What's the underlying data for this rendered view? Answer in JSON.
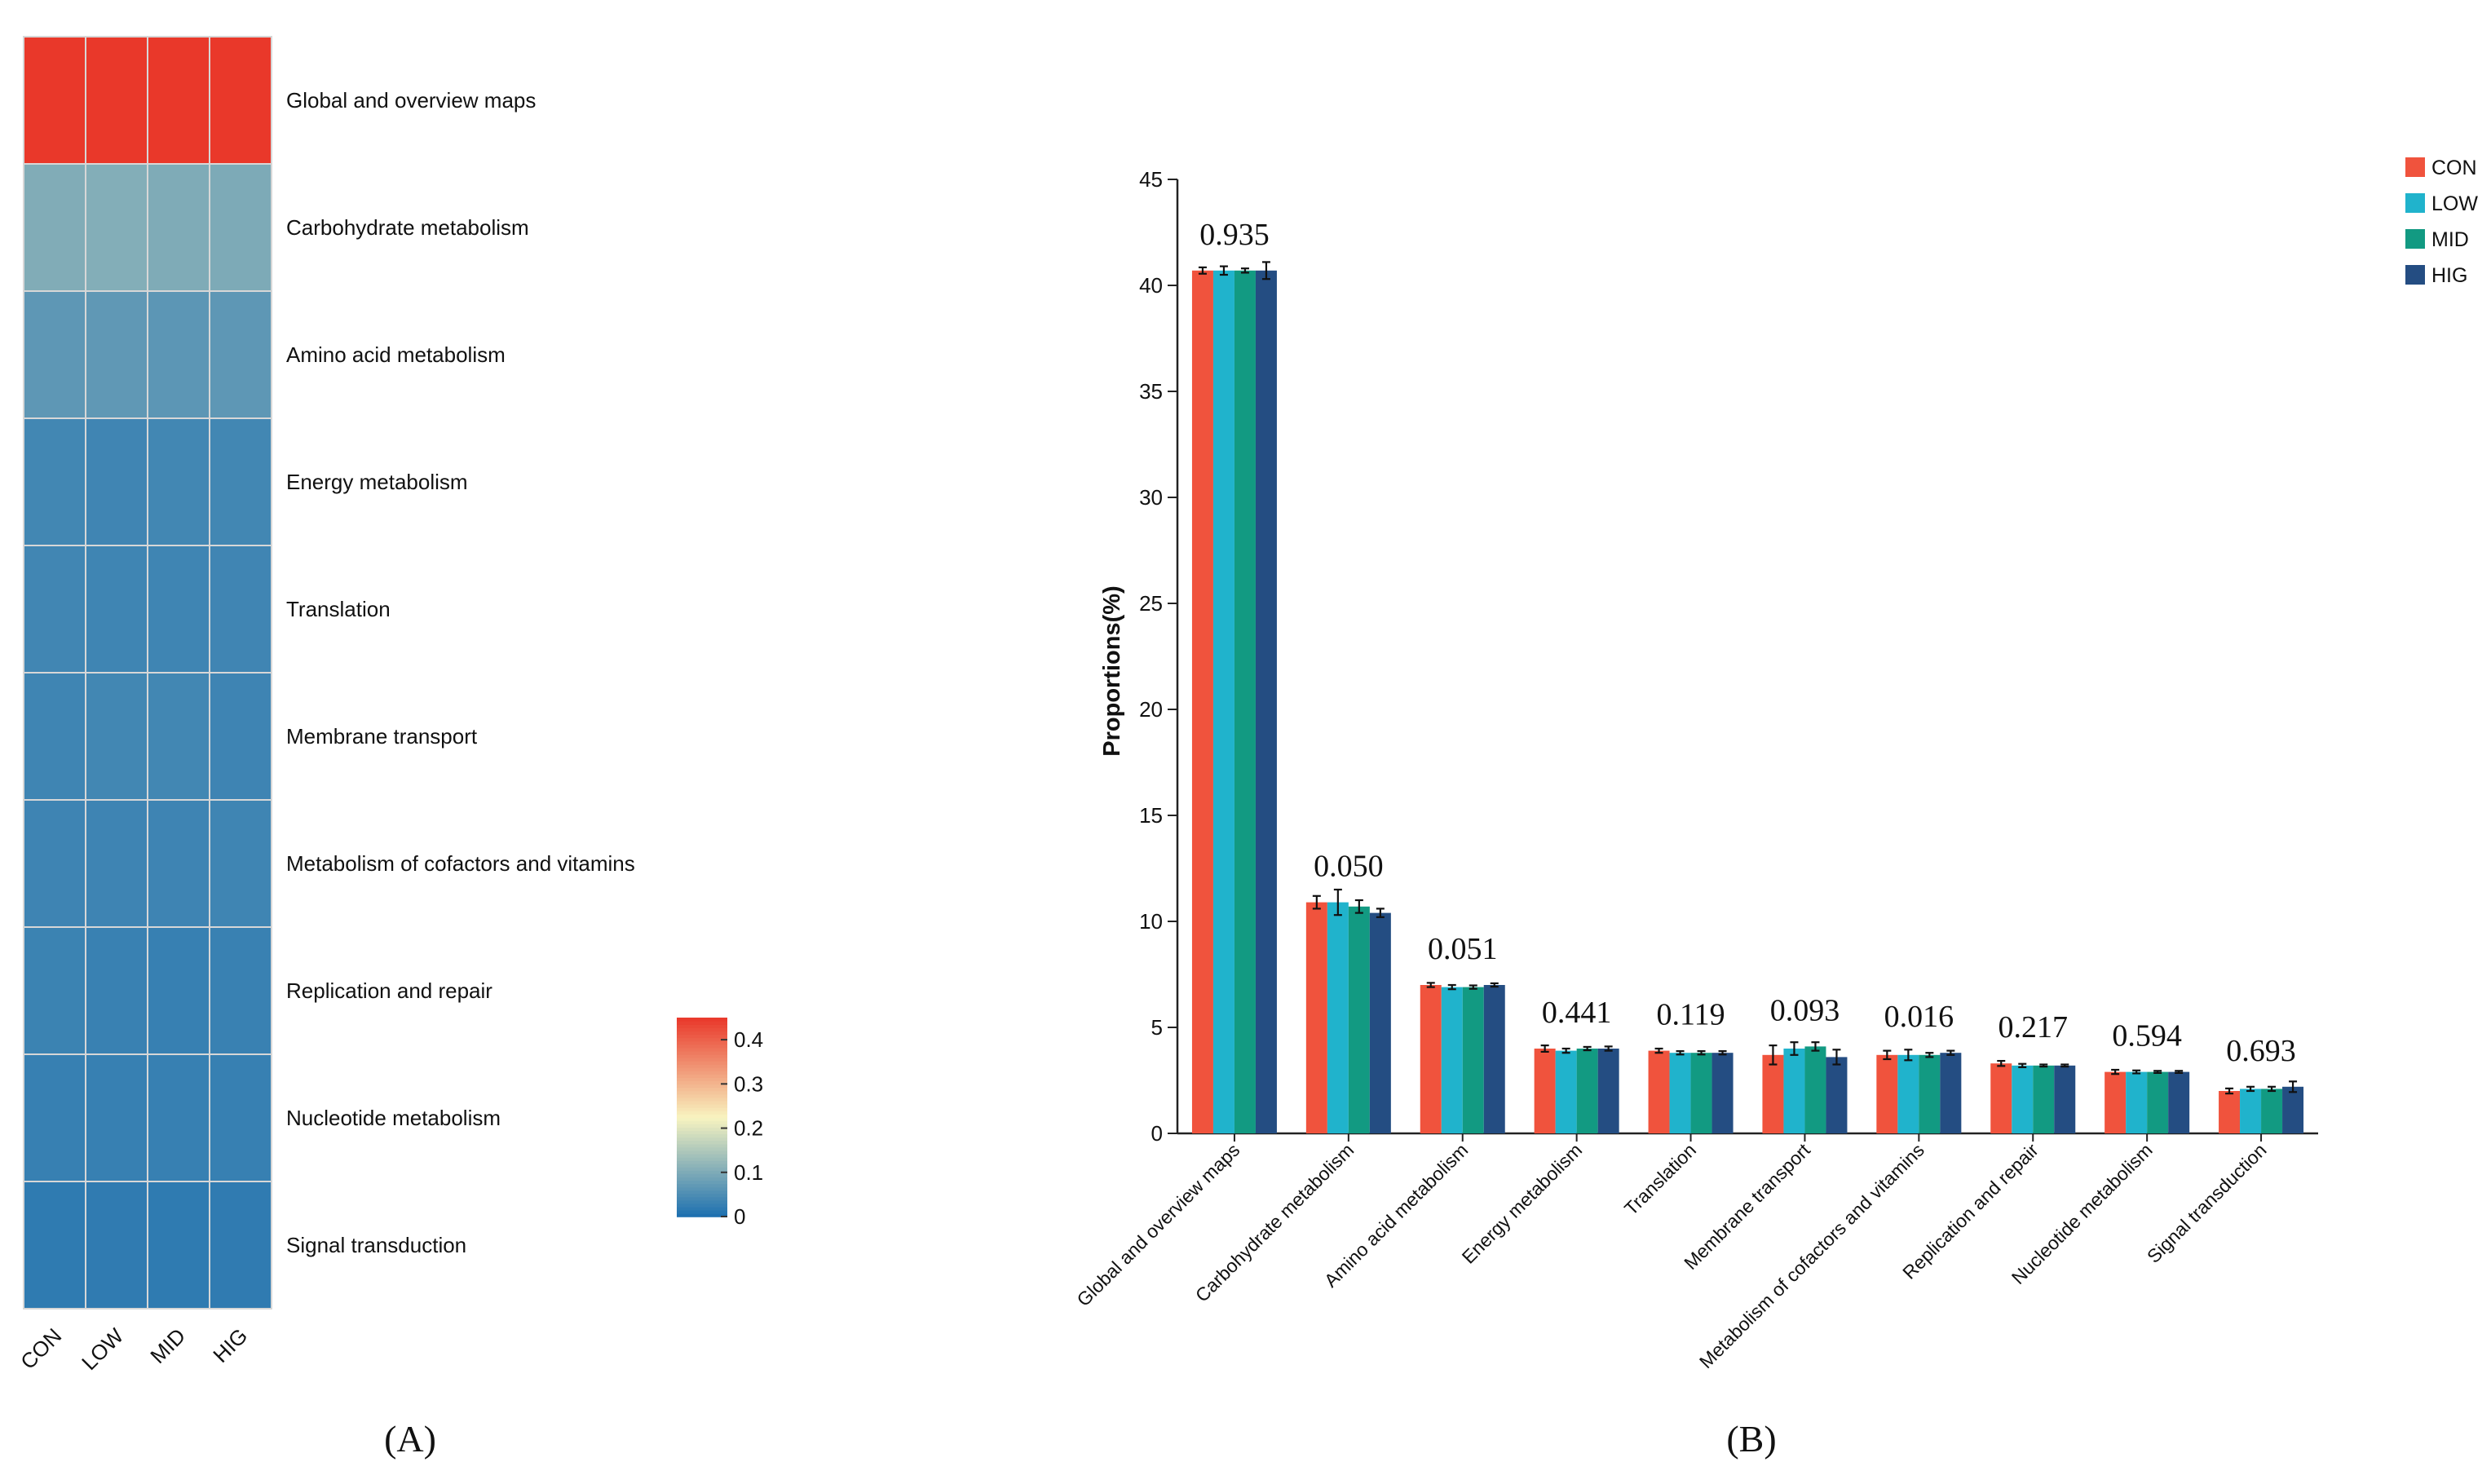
{
  "panel_labels": {
    "a": "(A)",
    "b": "(B)"
  },
  "palette": {
    "CON": "#f0533d",
    "LOW": "#20b3cc",
    "MID": "#129a82",
    "HIG": "#244d82",
    "error_bar": "#111111",
    "heat_low": "#1b6fb0",
    "heat_mid": "#f8f4c0",
    "heat_high": "#e9382a"
  },
  "chart_data": [
    {
      "type": "heatmap",
      "panel": "(A)",
      "columns": [
        "CON",
        "LOW",
        "MID",
        "HIG"
      ],
      "rows": [
        "Global and overview maps",
        "Carbohydrate metabolism",
        "Amino acid metabolism",
        "Energy metabolism",
        "Translation",
        "Membrane transport",
        "Metabolism of cofactors and vitamins",
        "Replication and repair",
        "Nucleotide metabolism",
        "Signal transduction"
      ],
      "values": [
        [
          0.45,
          0.45,
          0.45,
          0.45
        ],
        [
          0.104,
          0.106,
          0.102,
          0.1
        ],
        [
          0.068,
          0.07,
          0.066,
          0.068
        ],
        [
          0.04,
          0.038,
          0.04,
          0.04
        ],
        [
          0.039,
          0.037,
          0.037,
          0.038
        ],
        [
          0.037,
          0.04,
          0.04,
          0.036
        ],
        [
          0.036,
          0.036,
          0.036,
          0.037
        ],
        [
          0.033,
          0.031,
          0.029,
          0.031
        ],
        [
          0.029,
          0.028,
          0.028,
          0.028
        ],
        [
          0.02,
          0.021,
          0.02,
          0.021
        ]
      ],
      "colorbar": {
        "min": 0,
        "max": 0.45,
        "ticks": [
          "0",
          "0.1",
          "0.2",
          "0.3",
          "0.4"
        ]
      }
    },
    {
      "type": "bar",
      "panel": "(B)",
      "ylabel": "Proportions(%)",
      "ylim": [
        0,
        45
      ],
      "yticks": [
        "0",
        "5",
        "10",
        "15",
        "20",
        "25",
        "30",
        "35",
        "40",
        "45"
      ],
      "categories": [
        "Global and overview maps",
        "Carbohydrate metabolism",
        "Amino acid metabolism",
        "Energy metabolism",
        "Translation",
        "Membrane transport",
        "Metabolism of cofactors and vitamins",
        "Replication and repair",
        "Nucleotide metabolism",
        "Signal transduction"
      ],
      "p_values": [
        "0.935",
        "0.050",
        "0.051",
        "0.441",
        "0.119",
        "0.093",
        "0.016",
        "0.217",
        "0.594",
        "0.693"
      ],
      "legend": [
        "CON",
        "LOW",
        "MID",
        "HIG"
      ],
      "series": [
        {
          "name": "CON",
          "values": [
            40.7,
            10.9,
            7.0,
            4.0,
            3.9,
            3.7,
            3.7,
            3.3,
            2.9,
            2.0
          ],
          "errors": [
            0.15,
            0.3,
            0.1,
            0.15,
            0.1,
            0.45,
            0.2,
            0.12,
            0.1,
            0.12
          ]
        },
        {
          "name": "LOW",
          "values": [
            40.7,
            10.9,
            6.9,
            3.9,
            3.8,
            4.0,
            3.7,
            3.2,
            2.9,
            2.1
          ],
          "errors": [
            0.2,
            0.6,
            0.1,
            0.1,
            0.08,
            0.3,
            0.25,
            0.08,
            0.07,
            0.1
          ]
        },
        {
          "name": "MID",
          "values": [
            40.7,
            10.7,
            6.9,
            4.0,
            3.8,
            4.1,
            3.7,
            3.2,
            2.9,
            2.1
          ],
          "errors": [
            0.1,
            0.3,
            0.08,
            0.08,
            0.08,
            0.2,
            0.1,
            0.05,
            0.05,
            0.1
          ]
        },
        {
          "name": "HIG",
          "values": [
            40.7,
            10.4,
            7.0,
            4.0,
            3.8,
            3.6,
            3.8,
            3.2,
            2.9,
            2.2
          ],
          "errors": [
            0.4,
            0.2,
            0.08,
            0.1,
            0.08,
            0.35,
            0.1,
            0.05,
            0.05,
            0.25
          ]
        }
      ]
    }
  ]
}
